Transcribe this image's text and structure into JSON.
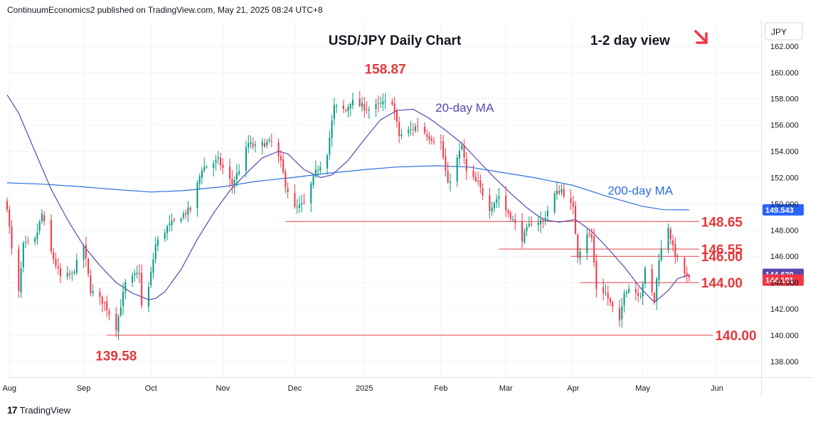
{
  "header": {
    "publisher_line": "ContinuumEconomics2 published on TradingView.com, May 21, 2025 08:24 UTC+8"
  },
  "footer": {
    "brand": "TradingView",
    "logo_icon": "tradingview-logo-icon"
  },
  "chart_data": {
    "type": "candlestick",
    "title": "USD/JPY Daily Chart",
    "subtitle": "1-2 day view",
    "view_direction_icon": "arrow-down-right-icon",
    "currency_label": "JPY",
    "ylim": [
      136.8,
      164.0
    ],
    "y_ticks": [
      "162.000",
      "160.000",
      "158.000",
      "156.000",
      "154.000",
      "152.000",
      "150.000",
      "148.000",
      "146.000",
      "144.000",
      "142.000",
      "140.000",
      "138.000"
    ],
    "x_ticks": [
      {
        "label": "Aug",
        "date": "2024-08-01"
      },
      {
        "label": "Sep",
        "date": "2024-09-02"
      },
      {
        "label": "Oct",
        "date": "2024-10-01"
      },
      {
        "label": "Nov",
        "date": "2024-11-01"
      },
      {
        "label": "Dec",
        "date": "2024-12-02"
      },
      {
        "label": "2025",
        "date": "2025-01-01"
      },
      {
        "label": "Feb",
        "date": "2025-02-03"
      },
      {
        "label": "Mar",
        "date": "2025-03-03"
      },
      {
        "label": "Apr",
        "date": "2025-04-01"
      },
      {
        "label": "May",
        "date": "2025-05-01"
      },
      {
        "label": "Jun",
        "date": "2025-06-02"
      }
    ],
    "x_range": [
      "2024-07-31",
      "2025-06-21"
    ],
    "close_anchors": [
      [
        "2024-07-31",
        149.8
      ],
      [
        "2024-08-02",
        146.5
      ],
      [
        "2024-08-05",
        143.2
      ],
      [
        "2024-08-07",
        146.8
      ],
      [
        "2024-08-12",
        147.2
      ],
      [
        "2024-08-15",
        149.2
      ],
      [
        "2024-08-19",
        146.3
      ],
      [
        "2024-08-23",
        144.4
      ],
      [
        "2024-08-28",
        144.6
      ],
      [
        "2024-09-02",
        146.8
      ],
      [
        "2024-09-05",
        143.4
      ],
      [
        "2024-09-11",
        142.4
      ],
      [
        "2024-09-16",
        140.6
      ],
      [
        "2024-09-18",
        142.3
      ],
      [
        "2024-09-20",
        143.9
      ],
      [
        "2024-09-26",
        144.8
      ],
      [
        "2024-09-27",
        142.2
      ],
      [
        "2024-09-30",
        143.6
      ],
      [
        "2024-10-03",
        146.9
      ],
      [
        "2024-10-08",
        148.2
      ],
      [
        "2024-10-15",
        149.2
      ],
      [
        "2024-10-18",
        149.6
      ],
      [
        "2024-10-23",
        152.7
      ],
      [
        "2024-10-30",
        153.3
      ],
      [
        "2024-11-05",
        151.5
      ],
      [
        "2024-11-08",
        152.6
      ],
      [
        "2024-11-12",
        154.6
      ],
      [
        "2024-11-15",
        154.3
      ],
      [
        "2024-11-19",
        154.6
      ],
      [
        "2024-11-22",
        154.7
      ],
      [
        "2024-11-26",
        153.1
      ],
      [
        "2024-11-28",
        151.5
      ],
      [
        "2024-12-02",
        149.6
      ],
      [
        "2024-12-06",
        150.0
      ],
      [
        "2024-12-11",
        152.4
      ],
      [
        "2024-12-16",
        153.9
      ],
      [
        "2024-12-19",
        157.4
      ],
      [
        "2024-12-24",
        157.1
      ],
      [
        "2024-12-26",
        157.8
      ],
      [
        "2025-01-03",
        157.2
      ],
      [
        "2025-01-10",
        157.7
      ],
      [
        "2025-01-13",
        157.8
      ],
      [
        "2025-01-16",
        155.2
      ],
      [
        "2025-01-21",
        155.6
      ],
      [
        "2025-01-24",
        156.0
      ],
      [
        "2025-01-29",
        155.1
      ],
      [
        "2025-02-03",
        154.6
      ],
      [
        "2025-02-06",
        151.4
      ],
      [
        "2025-02-12",
        154.4
      ],
      [
        "2025-02-14",
        152.4
      ],
      [
        "2025-02-19",
        151.5
      ],
      [
        "2025-02-24",
        149.7
      ],
      [
        "2025-02-28",
        150.6
      ],
      [
        "2025-03-03",
        149.5
      ],
      [
        "2025-03-05",
        149.1
      ],
      [
        "2025-03-10",
        147.4
      ],
      [
        "2025-03-14",
        148.6
      ],
      [
        "2025-03-19",
        148.7
      ],
      [
        "2025-03-24",
        150.7
      ],
      [
        "2025-03-27",
        151.1
      ],
      [
        "2025-04-01",
        149.6
      ],
      [
        "2025-04-03",
        146.1
      ],
      [
        "2025-04-07",
        147.8
      ],
      [
        "2025-04-09",
        147.4
      ],
      [
        "2025-04-11",
        143.6
      ],
      [
        "2025-04-15",
        143.2
      ],
      [
        "2025-04-17",
        142.4
      ],
      [
        "2025-04-21",
        140.9
      ],
      [
        "2025-04-23",
        143.4
      ],
      [
        "2025-04-25",
        143.6
      ],
      [
        "2025-04-30",
        143.1
      ],
      [
        "2025-05-02",
        144.9
      ],
      [
        "2025-05-06",
        142.6
      ],
      [
        "2025-05-08",
        145.9
      ],
      [
        "2025-05-12",
        148.3
      ],
      [
        "2025-05-14",
        146.6
      ],
      [
        "2025-05-16",
        145.7
      ],
      [
        "2025-05-20",
        144.4
      ],
      [
        "2025-05-21",
        144.2
      ]
    ],
    "series": [
      {
        "name": "20-day MA",
        "color": "#5b45b0",
        "points": [
          [
            "2024-07-31",
            158.3
          ],
          [
            "2024-08-05",
            156.9
          ],
          [
            "2024-08-12",
            154.0
          ],
          [
            "2024-08-19",
            151.1
          ],
          [
            "2024-08-26",
            148.8
          ],
          [
            "2024-09-02",
            146.8
          ],
          [
            "2024-09-09",
            145.3
          ],
          [
            "2024-09-16",
            144.0
          ],
          [
            "2024-09-23",
            143.2
          ],
          [
            "2024-09-30",
            142.7
          ],
          [
            "2024-10-03",
            142.8
          ],
          [
            "2024-10-07",
            143.3
          ],
          [
            "2024-10-14",
            145.0
          ],
          [
            "2024-10-21",
            147.3
          ],
          [
            "2024-10-28",
            149.3
          ],
          [
            "2024-11-04",
            151.0
          ],
          [
            "2024-11-11",
            152.3
          ],
          [
            "2024-11-18",
            153.5
          ],
          [
            "2024-11-25",
            154.0
          ],
          [
            "2024-11-29",
            153.8
          ],
          [
            "2024-12-06",
            152.6
          ],
          [
            "2024-12-13",
            152.0
          ],
          [
            "2024-12-18",
            152.2
          ],
          [
            "2024-12-25",
            153.3
          ],
          [
            "2025-01-01",
            154.9
          ],
          [
            "2025-01-08",
            156.4
          ],
          [
            "2025-01-15",
            157.1
          ],
          [
            "2025-01-22",
            157.2
          ],
          [
            "2025-01-29",
            156.5
          ],
          [
            "2025-02-05",
            155.6
          ],
          [
            "2025-02-12",
            154.6
          ],
          [
            "2025-02-19",
            153.3
          ],
          [
            "2025-02-26",
            152.0
          ],
          [
            "2025-03-05",
            150.8
          ],
          [
            "2025-03-12",
            149.7
          ],
          [
            "2025-03-19",
            148.8
          ],
          [
            "2025-03-26",
            148.6
          ],
          [
            "2025-04-02",
            148.8
          ],
          [
            "2025-04-09",
            147.9
          ],
          [
            "2025-04-16",
            146.6
          ],
          [
            "2025-04-23",
            145.2
          ],
          [
            "2025-04-30",
            143.6
          ],
          [
            "2025-05-06",
            142.5
          ],
          [
            "2025-05-12",
            143.4
          ],
          [
            "2025-05-16",
            144.3
          ],
          [
            "2025-05-21",
            144.6
          ]
        ]
      },
      {
        "name": "200-day MA",
        "color": "#2f6fe0",
        "points": [
          [
            "2024-07-31",
            151.6
          ],
          [
            "2024-08-15",
            151.5
          ],
          [
            "2024-09-01",
            151.3
          ],
          [
            "2024-09-15",
            151.1
          ],
          [
            "2024-10-01",
            150.9
          ],
          [
            "2024-10-15",
            151.0
          ],
          [
            "2024-11-01",
            151.3
          ],
          [
            "2024-11-15",
            151.7
          ],
          [
            "2024-12-01",
            152.0
          ],
          [
            "2024-12-15",
            152.3
          ],
          [
            "2025-01-01",
            152.6
          ],
          [
            "2025-01-15",
            152.8
          ],
          [
            "2025-02-01",
            152.9
          ],
          [
            "2025-02-15",
            152.8
          ],
          [
            "2025-03-01",
            152.4
          ],
          [
            "2025-03-15",
            152.0
          ],
          [
            "2025-04-01",
            151.4
          ],
          [
            "2025-04-15",
            150.6
          ],
          [
            "2025-05-01",
            149.8
          ],
          [
            "2025-05-10",
            149.55
          ],
          [
            "2025-05-21",
            149.54
          ]
        ]
      }
    ],
    "levels": [
      {
        "value": 148.65,
        "label": "148.65",
        "from": "2024-11-28",
        "to": "2025-05-21"
      },
      {
        "value": 146.55,
        "label": "146.55",
        "from": "2025-02-28",
        "to": "2025-05-21"
      },
      {
        "value": 146.0,
        "label": "146.00",
        "from": "2025-03-31",
        "to": "2025-05-21"
      },
      {
        "value": 144.0,
        "label": "144.00",
        "from": "2025-04-04",
        "to": "2025-05-21"
      },
      {
        "value": 140.0,
        "label": "140.00",
        "from": "2024-09-12",
        "to": "2025-05-27"
      }
    ],
    "annotations": [
      {
        "text": "158.87",
        "date": "2025-01-10",
        "value": 158.87
      },
      {
        "text": "139.58",
        "date": "2024-09-16",
        "value": 139.58
      }
    ],
    "price_tags": [
      {
        "text": "149.543",
        "value": 149.543,
        "color": "#2962ff"
      },
      {
        "text": "144.630",
        "value": 144.63,
        "color": "#5b45b0"
      },
      {
        "text": "144.191",
        "value": 144.191,
        "color": "#f23645"
      }
    ],
    "up_color": "#089981",
    "down_color": "#f23645",
    "level_color": "#f23645",
    "annotation_color": "#e5383b"
  }
}
